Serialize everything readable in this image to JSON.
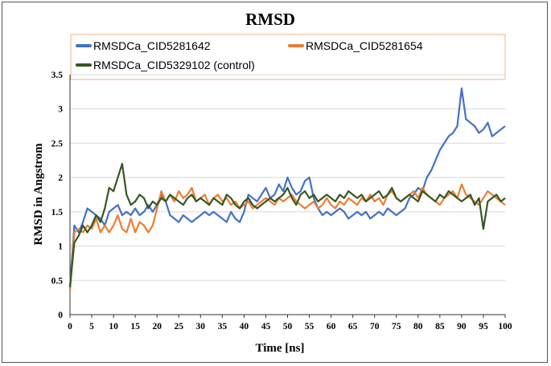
{
  "chart_data": {
    "type": "line",
    "title": "RMSD",
    "xlabel": "Time [ns]",
    "ylabel": "RMSD in Angstrom",
    "xlim": [
      0,
      100
    ],
    "ylim": [
      0,
      3.5
    ],
    "xticks": [
      "0",
      "5",
      "10",
      "15",
      "20",
      "25",
      "30",
      "35",
      "40",
      "45",
      "50",
      "55",
      "60",
      "65",
      "70",
      "75",
      "80",
      "85",
      "90",
      "95",
      "100"
    ],
    "yticks": [
      "0",
      "0.5",
      "1",
      "1.5",
      "2",
      "2.5",
      "3",
      "3.5"
    ],
    "grid": true,
    "legend_position": "top",
    "series": [
      {
        "name": "RMSDCa_CID5281642",
        "color": "#4472C4",
        "x": [
          0,
          1,
          2,
          3,
          4,
          5,
          6,
          7,
          8,
          9,
          10,
          11,
          12,
          13,
          14,
          15,
          16,
          17,
          18,
          19,
          20,
          21,
          22,
          23,
          24,
          25,
          26,
          27,
          28,
          29,
          30,
          31,
          32,
          33,
          34,
          35,
          36,
          37,
          38,
          39,
          40,
          41,
          42,
          43,
          44,
          45,
          46,
          47,
          48,
          49,
          50,
          51,
          52,
          53,
          54,
          55,
          56,
          57,
          58,
          59,
          60,
          61,
          62,
          63,
          64,
          65,
          66,
          67,
          68,
          69,
          70,
          71,
          72,
          73,
          74,
          75,
          76,
          77,
          78,
          79,
          80,
          81,
          82,
          83,
          84,
          85,
          86,
          87,
          88,
          89,
          90,
          91,
          92,
          93,
          94,
          95,
          96,
          97,
          98,
          99,
          100
        ],
        "values": [
          0.4,
          1.3,
          1.2,
          1.35,
          1.55,
          1.5,
          1.45,
          1.4,
          1.3,
          1.5,
          1.55,
          1.6,
          1.45,
          1.5,
          1.45,
          1.55,
          1.45,
          1.5,
          1.6,
          1.5,
          1.6,
          1.75,
          1.65,
          1.45,
          1.4,
          1.35,
          1.45,
          1.4,
          1.35,
          1.4,
          1.45,
          1.5,
          1.45,
          1.5,
          1.45,
          1.4,
          1.35,
          1.5,
          1.4,
          1.35,
          1.5,
          1.75,
          1.7,
          1.65,
          1.75,
          1.85,
          1.7,
          1.75,
          1.9,
          1.8,
          2.0,
          1.85,
          1.75,
          1.8,
          1.95,
          2.0,
          1.7,
          1.55,
          1.45,
          1.5,
          1.45,
          1.5,
          1.55,
          1.5,
          1.4,
          1.45,
          1.5,
          1.45,
          1.5,
          1.4,
          1.45,
          1.5,
          1.45,
          1.55,
          1.5,
          1.45,
          1.5,
          1.55,
          1.7,
          1.75,
          1.85,
          1.8,
          2.0,
          2.1,
          2.25,
          2.4,
          2.5,
          2.6,
          2.65,
          2.75,
          3.3,
          2.85,
          2.8,
          2.75,
          2.65,
          2.7,
          2.8,
          2.6,
          2.65,
          2.7,
          2.75
        ]
      },
      {
        "name": "RMSDCa_CID5281654",
        "color": "#ED7D31",
        "x": [
          0,
          1,
          2,
          3,
          4,
          5,
          6,
          7,
          8,
          9,
          10,
          11,
          12,
          13,
          14,
          15,
          16,
          17,
          18,
          19,
          20,
          21,
          22,
          23,
          24,
          25,
          26,
          27,
          28,
          29,
          30,
          31,
          32,
          33,
          34,
          35,
          36,
          37,
          38,
          39,
          40,
          41,
          42,
          43,
          44,
          45,
          46,
          47,
          48,
          49,
          50,
          51,
          52,
          53,
          54,
          55,
          56,
          57,
          58,
          59,
          60,
          61,
          62,
          63,
          64,
          65,
          66,
          67,
          68,
          69,
          70,
          71,
          72,
          73,
          74,
          75,
          76,
          77,
          78,
          79,
          80,
          81,
          82,
          83,
          84,
          85,
          86,
          87,
          88,
          89,
          90,
          91,
          92,
          93,
          94,
          95,
          96,
          97,
          98,
          99,
          100
        ],
        "values": [
          0.35,
          1.2,
          1.25,
          1.2,
          1.3,
          1.25,
          1.4,
          1.2,
          1.3,
          1.2,
          1.3,
          1.45,
          1.25,
          1.2,
          1.4,
          1.2,
          1.35,
          1.3,
          1.2,
          1.3,
          1.55,
          1.8,
          1.65,
          1.75,
          1.65,
          1.8,
          1.7,
          1.75,
          1.85,
          1.65,
          1.7,
          1.75,
          1.6,
          1.7,
          1.75,
          1.65,
          1.7,
          1.6,
          1.65,
          1.55,
          1.6,
          1.65,
          1.55,
          1.6,
          1.65,
          1.7,
          1.65,
          1.6,
          1.7,
          1.65,
          1.7,
          1.75,
          1.65,
          1.6,
          1.55,
          1.6,
          1.65,
          1.55,
          1.6,
          1.7,
          1.6,
          1.55,
          1.65,
          1.6,
          1.7,
          1.65,
          1.6,
          1.7,
          1.65,
          1.75,
          1.65,
          1.7,
          1.6,
          1.75,
          1.8,
          1.7,
          1.65,
          1.7,
          1.75,
          1.8,
          1.7,
          1.85,
          1.75,
          1.7,
          1.65,
          1.6,
          1.7,
          1.75,
          1.8,
          1.7,
          1.9,
          1.75,
          1.7,
          1.65,
          1.6,
          1.7,
          1.8,
          1.75,
          1.7,
          1.65,
          1.6
        ]
      },
      {
        "name": "RMSDCa_CID5329102 (control)",
        "color": "#375623",
        "x": [
          0,
          1,
          2,
          3,
          4,
          5,
          6,
          7,
          8,
          9,
          10,
          11,
          12,
          13,
          14,
          15,
          16,
          17,
          18,
          19,
          20,
          21,
          22,
          23,
          24,
          25,
          26,
          27,
          28,
          29,
          30,
          31,
          32,
          33,
          34,
          35,
          36,
          37,
          38,
          39,
          40,
          41,
          42,
          43,
          44,
          45,
          46,
          47,
          48,
          49,
          50,
          51,
          52,
          53,
          54,
          55,
          56,
          57,
          58,
          59,
          60,
          61,
          62,
          63,
          64,
          65,
          66,
          67,
          68,
          69,
          70,
          71,
          72,
          73,
          74,
          75,
          76,
          77,
          78,
          79,
          80,
          81,
          82,
          83,
          84,
          85,
          86,
          87,
          88,
          89,
          90,
          91,
          92,
          93,
          94,
          95,
          96,
          97,
          98,
          99,
          100
        ],
        "values": [
          0.4,
          1.05,
          1.15,
          1.3,
          1.2,
          1.3,
          1.45,
          1.35,
          1.55,
          1.85,
          1.8,
          2.0,
          2.2,
          1.75,
          1.6,
          1.65,
          1.75,
          1.7,
          1.55,
          1.65,
          1.6,
          1.7,
          1.65,
          1.75,
          1.7,
          1.65,
          1.6,
          1.7,
          1.75,
          1.65,
          1.7,
          1.65,
          1.6,
          1.7,
          1.65,
          1.6,
          1.75,
          1.7,
          1.6,
          1.55,
          1.65,
          1.7,
          1.6,
          1.55,
          1.6,
          1.65,
          1.7,
          1.65,
          1.7,
          1.75,
          1.85,
          1.7,
          1.6,
          1.75,
          1.8,
          1.7,
          1.75,
          1.65,
          1.7,
          1.75,
          1.7,
          1.65,
          1.75,
          1.7,
          1.8,
          1.75,
          1.7,
          1.75,
          1.65,
          1.7,
          1.75,
          1.8,
          1.7,
          1.75,
          1.85,
          1.7,
          1.65,
          1.7,
          1.75,
          1.7,
          1.65,
          1.8,
          1.75,
          1.7,
          1.65,
          1.75,
          1.7,
          1.8,
          1.75,
          1.7,
          1.65,
          1.7,
          1.75,
          1.6,
          1.7,
          1.25,
          1.65,
          1.7,
          1.75,
          1.65,
          1.7
        ]
      }
    ]
  }
}
